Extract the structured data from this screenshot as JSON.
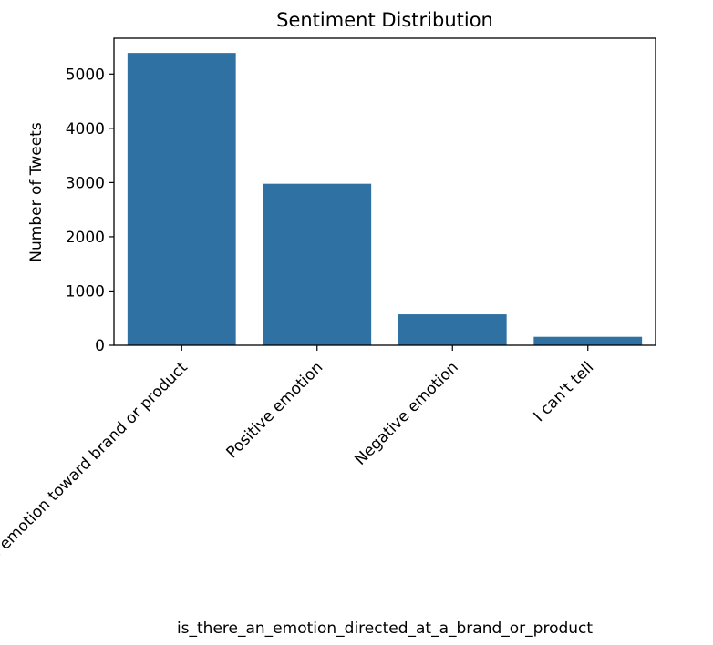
{
  "chart_data": {
    "type": "bar",
    "title": "Sentiment Distribution",
    "xlabel": "is_there_an_emotion_directed_at_a_brand_or_product",
    "ylabel": "Number of Tweets",
    "categories": [
      "No emotion toward brand or product",
      "Positive emotion",
      "Negative emotion",
      "I can't tell"
    ],
    "values": [
      5389,
      2978,
      570,
      156
    ],
    "yticks": [
      0,
      1000,
      2000,
      3000,
      4000,
      5000
    ],
    "ylim": [
      0,
      5660
    ],
    "grid": false,
    "legend": "none",
    "bar_color": "#2f71a3",
    "x_tick_rotation_deg": 45
  }
}
